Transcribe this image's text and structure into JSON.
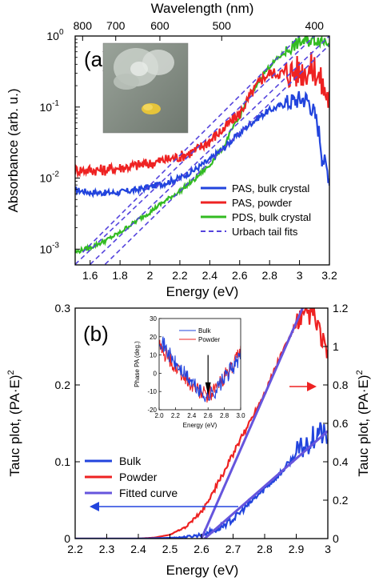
{
  "chart_data": [
    {
      "type": "line",
      "panel_label": "(a)",
      "xlabel": "Energy (eV)",
      "x2label": "Wavelength (nm)",
      "ylabel": "Absorbance (arb. u.)",
      "xlim": [
        1.5,
        3.2
      ],
      "ylim": [
        0.0006,
        1.0
      ],
      "yscale": "log",
      "xticks": [
        1.6,
        1.8,
        2.0,
        2.2,
        2.4,
        2.6,
        2.8,
        3.0,
        3.2
      ],
      "xtick_labels": [
        "1.6",
        "1.8",
        "2",
        "2.2",
        "2.4",
        "2.6",
        "2.8",
        "3",
        "3.2"
      ],
      "x2ticks_nm": [
        800,
        700,
        600,
        500,
        400
      ],
      "yticks": [
        0.001,
        0.01,
        0.1,
        1
      ],
      "ytick_labels": [
        "10",
        "10",
        "10",
        "10"
      ],
      "ytick_exponents": [
        "-3",
        "-2",
        "-1",
        "0"
      ],
      "grid": false,
      "legend_position": "bottom-right",
      "inset": "photograph of crystal and yellow powder",
      "series": [
        {
          "name": "PAS, bulk crystal",
          "color": "#2244dd",
          "x": [
            1.5,
            1.6,
            1.7,
            1.8,
            1.9,
            2.0,
            2.1,
            2.2,
            2.3,
            2.4,
            2.5,
            2.6,
            2.7,
            2.8,
            2.9,
            3.0,
            3.05,
            3.1,
            3.15,
            3.2
          ],
          "y": [
            0.0068,
            0.0063,
            0.0062,
            0.0063,
            0.0068,
            0.0075,
            0.0085,
            0.01,
            0.013,
            0.018,
            0.027,
            0.042,
            0.065,
            0.09,
            0.11,
            0.13,
            0.13,
            0.08,
            0.02,
            0.01
          ]
        },
        {
          "name": "PAS, powder",
          "color": "#ee2222",
          "x": [
            1.5,
            1.6,
            1.7,
            1.8,
            1.9,
            2.0,
            2.1,
            2.2,
            2.3,
            2.4,
            2.5,
            2.6,
            2.65,
            2.7,
            2.75,
            2.8,
            2.9,
            3.0,
            3.1,
            3.15,
            3.2
          ],
          "y": [
            0.013,
            0.013,
            0.013,
            0.014,
            0.015,
            0.016,
            0.018,
            0.02,
            0.024,
            0.033,
            0.05,
            0.08,
            0.12,
            0.18,
            0.25,
            0.3,
            0.3,
            0.32,
            0.35,
            0.2,
            0.12
          ]
        },
        {
          "name": "PDS, bulk crystal",
          "color": "#33bb22",
          "x": [
            1.5,
            1.6,
            1.7,
            1.8,
            1.9,
            2.0,
            2.1,
            2.2,
            2.3,
            2.4,
            2.5,
            2.6,
            2.7,
            2.8,
            2.9,
            3.0,
            3.05,
            3.1,
            3.15,
            3.2
          ],
          "y": [
            0.0009,
            0.00105,
            0.0013,
            0.0017,
            0.0024,
            0.0033,
            0.0047,
            0.0065,
            0.0095,
            0.015,
            0.028,
            0.07,
            0.18,
            0.37,
            0.58,
            0.82,
            0.85,
            0.88,
            0.88,
            0.85
          ]
        },
        {
          "name": "Urbach tail fits",
          "color": "#5544dd",
          "dashed": true,
          "lines": [
            {
              "x": [
                1.5,
                3.1
              ],
              "y": [
                0.00061,
                1.0
              ]
            },
            {
              "x": [
                1.6,
                3.2
              ],
              "y": [
                0.00061,
                1.0
              ]
            },
            {
              "x": [
                1.7,
                3.2
              ],
              "y": [
                0.00061,
                0.75
              ]
            },
            {
              "x": [
                1.55,
                3.0
              ],
              "y": [
                0.0009,
                1.0
              ]
            }
          ]
        }
      ]
    },
    {
      "type": "line",
      "panel_label": "(b)",
      "xlabel": "Energy (eV)",
      "ylabel": "Tauc plot, (PA·E)",
      "ylabel_superscript": "2",
      "y2label": "Tauc plot, (PA·E)",
      "y2label_superscript": "2",
      "xlim": [
        2.2,
        3.0
      ],
      "ylim": [
        0,
        0.3
      ],
      "y2lim": [
        0,
        1.2
      ],
      "xticks": [
        2.2,
        2.3,
        2.4,
        2.5,
        2.6,
        2.7,
        2.8,
        2.9,
        3.0
      ],
      "xtick_labels": [
        "2.2",
        "2.3",
        "2.4",
        "2.5",
        "2.6",
        "2.7",
        "2.8",
        "2.9",
        "3"
      ],
      "yticks": [
        0,
        0.1,
        0.2,
        0.3
      ],
      "ytick_labels": [
        "0",
        "0.1",
        "0.2",
        "0.3"
      ],
      "y2ticks": [
        0,
        0.2,
        0.4,
        0.6,
        0.8,
        1.0,
        1.2
      ],
      "y2tick_labels": [
        "0",
        "0.2",
        "0.4",
        "0.6",
        "0.8",
        "1",
        "1.2"
      ],
      "grid": false,
      "legend_position": "lower-left",
      "series": [
        {
          "name": "Bulk",
          "color": "#2244dd",
          "axis": "left",
          "x": [
            2.2,
            2.4,
            2.5,
            2.55,
            2.6,
            2.65,
            2.7,
            2.75,
            2.8,
            2.85,
            2.9,
            2.95,
            2.97,
            3.0
          ],
          "y": [
            0.0,
            0.0,
            0.001,
            0.002,
            0.005,
            0.012,
            0.025,
            0.045,
            0.065,
            0.085,
            0.11,
            0.13,
            0.14,
            0.13
          ]
        },
        {
          "name": "Powder",
          "color": "#ee2222",
          "axis": "right",
          "x": [
            2.2,
            2.4,
            2.45,
            2.5,
            2.55,
            2.6,
            2.65,
            2.7,
            2.75,
            2.8,
            2.85,
            2.9,
            2.95,
            2.97,
            3.0
          ],
          "y": [
            0.0,
            0.0,
            0.005,
            0.02,
            0.06,
            0.14,
            0.28,
            0.44,
            0.6,
            0.76,
            0.95,
            1.12,
            1.18,
            1.1,
            0.95
          ]
        },
        {
          "name": "Fitted curve",
          "color": "#6655dd",
          "fits": [
            {
              "axis": "left",
              "x": [
                2.61,
                3.0
              ],
              "y": [
                0.0,
                0.14
              ]
            },
            {
              "axis": "right",
              "x": [
                2.6,
                2.92
              ],
              "y": [
                0.0,
                1.2
              ]
            }
          ]
        }
      ]
    },
    {
      "type": "line",
      "inset_of": "(b)",
      "xlabel": "Energy (eV)",
      "ylabel": "Phase PA (deg.)",
      "xlim": [
        2.0,
        3.0
      ],
      "ylim": [
        -20,
        30
      ],
      "xticks": [
        2.0,
        2.2,
        2.4,
        2.6,
        2.8,
        3.0
      ],
      "xtick_labels": [
        "2.0",
        "2.2",
        "2.4",
        "2.6",
        "2.8",
        "3.0"
      ],
      "yticks": [
        -20,
        -10,
        0,
        10,
        20,
        30
      ],
      "ytick_labels": [
        "-20",
        "-10",
        "0",
        "10",
        "20",
        "30"
      ],
      "legend_position": "top-center",
      "marker_energy": 2.6,
      "series": [
        {
          "name": "Bulk",
          "color": "#2244dd",
          "x": [
            2.0,
            2.1,
            2.2,
            2.3,
            2.4,
            2.5,
            2.6,
            2.7,
            2.8,
            2.9,
            3.0
          ],
          "y": [
            20,
            12,
            5,
            0,
            -5,
            -10,
            -13,
            -9,
            -3,
            3,
            9
          ]
        },
        {
          "name": "Powder",
          "color": "#ee2222",
          "x": [
            2.0,
            2.1,
            2.2,
            2.3,
            2.4,
            2.5,
            2.6,
            2.7,
            2.8,
            2.9,
            3.0
          ],
          "y": [
            15,
            9,
            3,
            -2,
            -6,
            -10,
            -12,
            -8,
            -2,
            4,
            11
          ]
        }
      ]
    }
  ]
}
